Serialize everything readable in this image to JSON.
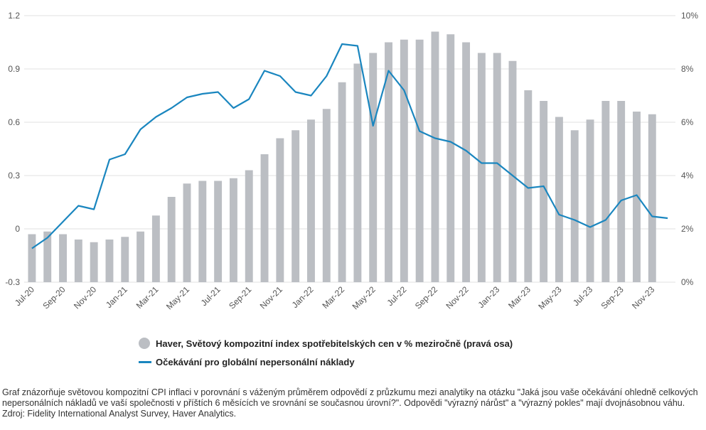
{
  "chart_data": {
    "type": "bar+line",
    "categories": [
      "Jul-20",
      "Aug-20",
      "Sep-20",
      "Oct-20",
      "Nov-20",
      "Dec-20",
      "Jan-21",
      "Feb-21",
      "Mar-21",
      "Apr-21",
      "May-21",
      "Jun-21",
      "Jul-21",
      "Aug-21",
      "Sep-21",
      "Oct-21",
      "Nov-21",
      "Dec-21",
      "Jan-22",
      "Feb-22",
      "Mar-22",
      "Apr-22",
      "May-22",
      "Jun-22",
      "Jul-22",
      "Aug-22",
      "Sep-22",
      "Oct-22",
      "Nov-22",
      "Dec-22",
      "Jan-23",
      "Feb-23",
      "Mar-23",
      "Apr-23",
      "May-23",
      "Jun-23",
      "Jul-23",
      "Aug-23",
      "Sep-23",
      "Oct-23",
      "Nov-23",
      "Dec-23"
    ],
    "tick_labels": [
      "Jul-20",
      "Sep-20",
      "Nov-20",
      "Jan-21",
      "Mar-21",
      "May-21",
      "Jul-21",
      "Sep-21",
      "Nov-21",
      "Jan-22",
      "Mar-22",
      "May-22",
      "Jul-22",
      "Sep-22",
      "Nov-22",
      "Jan-23",
      "Mar-23",
      "May-23",
      "Jul-23",
      "Sep-23",
      "Nov-23"
    ],
    "series": [
      {
        "name": "Haver, Světový kompozitní index spotřebitelských cen v % meziročně (pravá osa)",
        "type": "bar",
        "axis": "right",
        "color": "#bbbec3",
        "values": [
          1.8,
          1.9,
          1.8,
          1.6,
          1.5,
          1.6,
          1.7,
          1.9,
          2.5,
          3.2,
          3.7,
          3.8,
          3.8,
          3.9,
          4.2,
          4.8,
          5.4,
          5.7,
          6.1,
          6.5,
          7.5,
          8.2,
          8.6,
          9.0,
          9.1,
          9.1,
          9.4,
          9.3,
          9.0,
          8.6,
          8.6,
          8.3,
          7.2,
          6.8,
          6.2,
          5.7,
          6.1,
          6.8,
          6.8,
          6.4,
          6.3,
          null
        ]
      },
      {
        "name": "Očekávání pro globální nepersonální náklady",
        "type": "line",
        "axis": "left",
        "color": "#1a86bf",
        "values": [
          -0.11,
          -0.05,
          0.04,
          0.13,
          0.11,
          0.39,
          0.42,
          0.56,
          0.63,
          0.68,
          0.74,
          0.76,
          0.77,
          0.68,
          0.73,
          0.89,
          0.86,
          0.77,
          0.75,
          0.86,
          1.04,
          1.03,
          0.58,
          0.89,
          0.78,
          0.55,
          0.51,
          0.49,
          0.44,
          0.37,
          0.37,
          0.3,
          0.23,
          0.24,
          0.08,
          0.05,
          0.01,
          0.05,
          0.16,
          0.19,
          0.07,
          0.06
        ]
      }
    ],
    "y_left": {
      "ticks": [
        "-0.3",
        "0",
        "0.3",
        "0.6",
        "0.9",
        "1.2"
      ],
      "ylim": [
        -0.3,
        1.2
      ]
    },
    "y_right": {
      "ticks": [
        "0%",
        "2%",
        "4%",
        "6%",
        "8%",
        "10%"
      ],
      "ylim": [
        0,
        10
      ]
    },
    "grid": true,
    "legend_position": "bottom"
  },
  "caption": "Graf znázorňuje světovou kompozitní CPI inflaci v porovnání s váženým průměrem odpovědí z průzkumu mezi analytiky na otázku \"Jaká jsou vaše očekávání ohledně celkových nepersonálních nákladů ve vaší společnosti v příštích 6 měsících ve srovnání se současnou úrovní?\". Odpovědi \"výrazný nárůst\" a \"výrazný pokles\" mají dvojnásobnou váhu. Zdroj: Fidelity International Analyst Survey, Haver Analytics."
}
